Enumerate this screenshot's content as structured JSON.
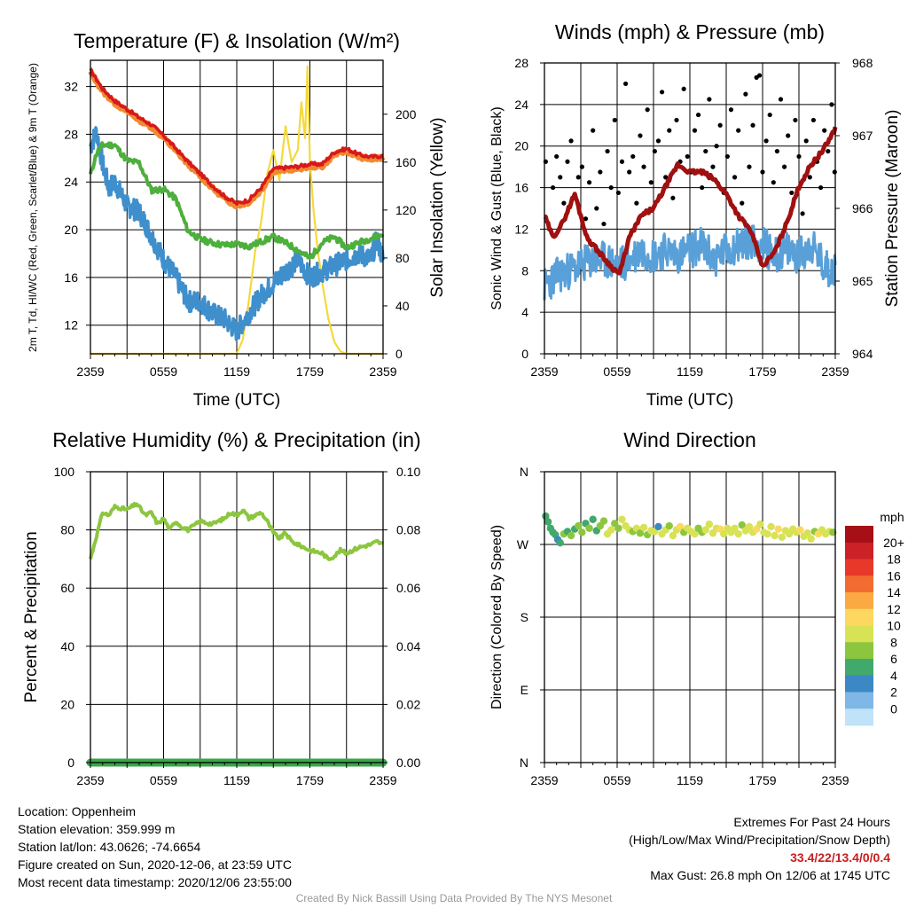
{
  "colors": {
    "temp_red": "#d7191c",
    "temp_orange": "#f08a30",
    "dewpoint_blue": "#3f8fcc",
    "hiwc_green": "#4daf3c",
    "insolation_yellow": "#f5d93a",
    "wind_blue": "#5aa0d8",
    "gust_black": "#000000",
    "pressure_maroon": "#a01010",
    "rh_green": "#8cc63f",
    "precip_green": "#3aa64a"
  },
  "panels": {
    "temp": {
      "title": "Temperature (F) & Insolation (W/m²)",
      "ylabel_left": "2m T, Td, HI/WC (Red, Green, Scarlet/Blue) & 9m T (Orange)",
      "ylabel_right": "Solar Insolation (Yellow)",
      "xlabel": "Time (UTC)"
    },
    "wind": {
      "title": "Winds (mph) & Pressure (mb)",
      "ylabel_left": "Sonic Wind & Gust (Blue, Black)",
      "ylabel_right": "Station Pressure (Maroon)",
      "xlabel": "Time (UTC)"
    },
    "rh": {
      "title": "Relative Humidity (%) & Precipitation (in)",
      "ylabel_left": "Percent & Precipitation"
    },
    "dir": {
      "title": "Wind Direction",
      "ylabel_left": "Direction (Colored By Speed)",
      "colorbar_unit": "mph"
    }
  },
  "chart_data": [
    {
      "id": "temperature",
      "type": "line",
      "x_ticks": [
        "2359",
        "0559",
        "1159",
        "1759",
        "2359"
      ],
      "x_hours": [
        0,
        6,
        12,
        18,
        24
      ],
      "ylim_left": [
        9.6,
        34.2
      ],
      "yticks_left": [
        12,
        16,
        20,
        24,
        28,
        32
      ],
      "ylim_right": [
        0,
        245
      ],
      "yticks_right": [
        0,
        40,
        80,
        120,
        160,
        200
      ],
      "series": [
        {
          "key": "t9m",
          "axis": "left",
          "color": "#f08a30",
          "x": [
            0,
            1,
            2,
            3,
            4,
            5,
            6,
            7,
            8,
            9,
            10,
            11,
            12,
            13,
            14,
            15,
            16,
            17,
            18,
            19,
            20,
            21,
            22,
            23,
            24
          ],
          "y": [
            33.2,
            31.6,
            30.6,
            29.9,
            29.2,
            28.6,
            27.7,
            26.6,
            25.5,
            24.5,
            23.5,
            22.6,
            22.0,
            22.3,
            23.3,
            24.9,
            25.0,
            25.1,
            25.3,
            25.3,
            26.3,
            26.6,
            26.1,
            25.9,
            26.0
          ]
        },
        {
          "key": "t2m",
          "axis": "left",
          "color": "#d7191c",
          "x": [
            0,
            1,
            2,
            3,
            4,
            5,
            6,
            7,
            8,
            9,
            10,
            11,
            12,
            13,
            14,
            15,
            16,
            17,
            18,
            19,
            20,
            21,
            22,
            23,
            24
          ],
          "y": [
            33.4,
            31.8,
            30.8,
            30.1,
            29.4,
            28.8,
            27.9,
            26.8,
            25.7,
            24.7,
            23.7,
            22.8,
            22.2,
            22.5,
            23.5,
            25.1,
            25.2,
            25.3,
            25.5,
            25.5,
            26.5,
            26.8,
            26.3,
            26.1,
            26.2
          ]
        },
        {
          "key": "hiwc",
          "axis": "left",
          "color": "#4daf3c",
          "x": [
            0,
            0.5,
            1,
            2,
            3,
            4,
            5,
            6,
            7,
            8,
            9,
            10,
            11,
            12,
            13,
            14,
            15,
            16,
            17,
            18,
            19,
            20,
            21,
            22,
            23,
            24
          ],
          "y": [
            24.6,
            26.4,
            27.1,
            27.1,
            25.8,
            25.6,
            23.3,
            23.4,
            22.6,
            19.9,
            19.2,
            18.9,
            18.7,
            18.8,
            18.6,
            19.0,
            19.4,
            18.9,
            18.3,
            17.6,
            18.9,
            19.4,
            18.5,
            18.9,
            19.3,
            19.6
          ]
        },
        {
          "key": "dewpoint",
          "axis": "left",
          "color": "#3f8fcc",
          "x": [
            0,
            0.5,
            1,
            1.5,
            2,
            3,
            4,
            5,
            6,
            7,
            8,
            9,
            10,
            11,
            12,
            13,
            14,
            15,
            16,
            17,
            18,
            19,
            20,
            21,
            22,
            23,
            23.5,
            24
          ],
          "y": [
            27.0,
            28.2,
            25.5,
            23.5,
            24.0,
            22.0,
            21.5,
            19.5,
            17.5,
            16.0,
            14.0,
            14.0,
            13.0,
            12.5,
            11.5,
            13.0,
            14.5,
            15.5,
            16.5,
            17.5,
            16.0,
            16.5,
            17.0,
            17.5,
            18.0,
            17.5,
            19.2,
            17.5
          ]
        },
        {
          "key": "insolation",
          "axis": "right",
          "color": "#f5d93a",
          "x": [
            0,
            12.0,
            12.5,
            13.0,
            13.5,
            14.0,
            14.5,
            15.0,
            15.5,
            16.0,
            16.5,
            17.0,
            17.3,
            17.6,
            17.8,
            18.0,
            18.3,
            18.6,
            19.0,
            19.5,
            20.0,
            20.5,
            21.0,
            24.0
          ],
          "y": [
            0,
            0,
            12,
            45,
            85,
            110,
            150,
            170,
            145,
            190,
            160,
            170,
            210,
            180,
            240,
            160,
            120,
            90,
            60,
            30,
            10,
            2,
            0,
            0
          ]
        }
      ]
    },
    {
      "id": "winds",
      "type": "line",
      "x_ticks": [
        "2359",
        "0559",
        "1159",
        "1759",
        "2359"
      ],
      "x_hours": [
        0,
        6,
        12,
        18,
        24
      ],
      "ylim_left": [
        0,
        28
      ],
      "yticks_left": [
        0,
        4,
        8,
        12,
        16,
        20,
        24,
        28
      ],
      "ylim_right": [
        964,
        968
      ],
      "yticks_right": [
        964,
        965,
        966,
        967,
        968
      ],
      "series": [
        {
          "key": "wind",
          "axis": "left",
          "color": "#5aa0d8",
          "x": [
            0,
            1,
            2,
            3,
            4,
            5,
            6,
            7,
            8,
            9,
            10,
            11,
            12,
            13,
            14,
            15,
            16,
            17,
            18,
            19,
            20,
            21,
            22,
            23,
            24
          ],
          "y": [
            6.5,
            7.5,
            8.0,
            8.5,
            9.0,
            9.0,
            8.5,
            9.0,
            10.0,
            9.5,
            10.0,
            9.5,
            10.0,
            10.5,
            9.0,
            10.0,
            10.5,
            11.0,
            10.5,
            9.5,
            10.0,
            9.5,
            10.5,
            8.5,
            8.0
          ]
        },
        {
          "key": "pressure",
          "axis": "right",
          "color": "#a01010",
          "x": [
            0,
            0.7,
            1.5,
            2.5,
            3.5,
            4.5,
            5.5,
            6.2,
            7,
            8,
            9,
            10,
            11,
            12,
            13,
            14,
            15,
            16,
            17,
            18,
            19,
            20,
            21,
            22,
            23,
            24
          ],
          "y": [
            965.9,
            965.6,
            965.8,
            966.2,
            965.6,
            965.4,
            965.2,
            965.1,
            965.6,
            965.9,
            966.0,
            966.3,
            966.6,
            966.5,
            966.5,
            966.4,
            966.2,
            965.9,
            965.7,
            965.2,
            965.4,
            965.8,
            966.3,
            966.6,
            966.8,
            967.1
          ]
        }
      ],
      "gusts": {
        "key": "gust",
        "color": "#000000",
        "x": [
          0.1,
          0.4,
          0.7,
          1.0,
          1.3,
          1.6,
          1.9,
          2.2,
          2.5,
          2.8,
          3.1,
          3.4,
          3.7,
          4.0,
          4.3,
          4.6,
          4.9,
          5.2,
          5.5,
          5.8,
          6.1,
          6.4,
          6.7,
          7.0,
          7.3,
          7.6,
          7.9,
          8.2,
          8.5,
          8.8,
          9.1,
          9.4,
          9.7,
          10.0,
          10.3,
          10.6,
          10.9,
          11.2,
          11.5,
          11.8,
          12.1,
          12.4,
          12.7,
          13.0,
          13.3,
          13.6,
          13.9,
          14.2,
          14.5,
          14.8,
          15.1,
          15.4,
          15.7,
          16.0,
          16.3,
          16.6,
          16.9,
          17.2,
          17.5,
          17.75,
          18.0,
          18.3,
          18.6,
          18.9,
          19.2,
          19.5,
          19.8,
          20.1,
          20.4,
          20.7,
          21.0,
          21.3,
          21.6,
          21.9,
          22.2,
          22.5,
          22.8,
          23.1,
          23.4,
          23.7,
          23.95
        ],
        "y": [
          18.5,
          12.0,
          16.0,
          19.0,
          17.0,
          14.5,
          18.5,
          20.5,
          15.0,
          17.0,
          18.0,
          13.0,
          16.5,
          21.5,
          14.0,
          17.5,
          12.5,
          19.5,
          16.0,
          22.5,
          15.5,
          18.5,
          26.0,
          17.5,
          19.0,
          14.5,
          21.0,
          18.0,
          23.5,
          16.5,
          19.5,
          20.5,
          25.2,
          17.0,
          21.5,
          15.0,
          22.5,
          18.5,
          25.5,
          19.0,
          17.5,
          21.5,
          23.0,
          16.0,
          19.5,
          24.5,
          18.0,
          20.0,
          22.0,
          15.5,
          19.0,
          23.5,
          17.0,
          21.5,
          14.5,
          25.0,
          18.0,
          22.0,
          26.6,
          26.8,
          17.5,
          20.5,
          23.0,
          16.5,
          19.5,
          24.5,
          18.0,
          21.0,
          15.5,
          22.5,
          19.0,
          13.5,
          20.5,
          17.0,
          22.5,
          18.5,
          16.0,
          21.5,
          19.5,
          24.0,
          17.5
        ]
      }
    },
    {
      "id": "humidity",
      "type": "line",
      "x_ticks": [
        "2359",
        "0559",
        "1159",
        "1759",
        "2359"
      ],
      "x_hours": [
        0,
        6,
        12,
        18,
        24
      ],
      "ylim_left": [
        0,
        100
      ],
      "yticks_left": [
        0,
        20,
        40,
        60,
        80,
        100
      ],
      "ylim_right": [
        0,
        0.1
      ],
      "yticks_right": [
        "0.00",
        "0.02",
        "0.04",
        "0.06",
        "0.08",
        "0.10"
      ],
      "series": [
        {
          "key": "rh",
          "axis": "left",
          "color": "#8cc63f",
          "x": [
            0,
            0.5,
            1,
            1.5,
            2,
            3,
            3.8,
            4.5,
            5,
            5.5,
            6,
            6.5,
            7,
            7.5,
            8,
            9,
            10,
            11,
            11.5,
            12,
            12.5,
            13,
            13.5,
            14,
            14.5,
            15,
            15.5,
            16,
            16.5,
            17,
            18,
            19,
            19.5,
            20,
            20.5,
            21,
            22,
            23,
            23.5,
            24
          ],
          "y": [
            70,
            78,
            86,
            85,
            88,
            87,
            89,
            85,
            86,
            82,
            84,
            80,
            83,
            81,
            80,
            83,
            82,
            84,
            86,
            85,
            87,
            84,
            85,
            86,
            83,
            79,
            77,
            79,
            76,
            75,
            73,
            72,
            70,
            71,
            73,
            72,
            74,
            75,
            76,
            75
          ]
        },
        {
          "key": "precip",
          "axis": "right",
          "color": "#3aa64a",
          "x": [
            0,
            24
          ],
          "y": [
            0,
            0
          ]
        }
      ]
    },
    {
      "id": "wind_direction",
      "type": "scatter",
      "x_ticks": [
        "2359",
        "0559",
        "1159",
        "1759",
        "2359"
      ],
      "x_hours": [
        0,
        6,
        12,
        18,
        24
      ],
      "yticks": [
        "N",
        "E",
        "S",
        "W",
        "N"
      ],
      "yvals": [
        0,
        90,
        180,
        270,
        360
      ],
      "ylim": [
        0,
        360
      ],
      "points": {
        "x": [
          0.1,
          0.3,
          0.5,
          0.7,
          0.9,
          1.1,
          1.3,
          1.6,
          1.9,
          2.2,
          2.5,
          2.8,
          3.1,
          3.4,
          3.7,
          4.0,
          4.3,
          4.6,
          4.9,
          5.2,
          5.5,
          5.8,
          6.1,
          6.4,
          6.7,
          7.0,
          7.3,
          7.6,
          7.9,
          8.2,
          8.5,
          8.8,
          9.1,
          9.4,
          9.7,
          10.0,
          10.3,
          10.6,
          10.9,
          11.2,
          11.5,
          11.8,
          12.1,
          12.4,
          12.7,
          13.0,
          13.3,
          13.6,
          13.9,
          14.2,
          14.5,
          14.8,
          15.1,
          15.4,
          15.7,
          16.0,
          16.3,
          16.6,
          16.9,
          17.2,
          17.5,
          17.8,
          18.1,
          18.4,
          18.7,
          19.0,
          19.3,
          19.6,
          19.9,
          20.2,
          20.5,
          20.8,
          21.1,
          21.4,
          21.7,
          22.0,
          22.3,
          22.6,
          22.9,
          23.2,
          23.5,
          23.8
        ],
        "dir": [
          305,
          298,
          290,
          285,
          282,
          276,
          272,
          283,
          286,
          281,
          289,
          293,
          285,
          296,
          290,
          301,
          287,
          293,
          299,
          283,
          288,
          296,
          290,
          301,
          293,
          288,
          286,
          290,
          284,
          291,
          282,
          287,
          286,
          292,
          283,
          288,
          293,
          281,
          288,
          292,
          285,
          290,
          286,
          283,
          290,
          285,
          288,
          295,
          284,
          290,
          289,
          283,
          290,
          285,
          290,
          283,
          294,
          287,
          292,
          285,
          289,
          295,
          285,
          283,
          292,
          281,
          289,
          279,
          287,
          283,
          289,
          285,
          288,
          280,
          284,
          277,
          286,
          283,
          288,
          283,
          286,
          285
        ],
        "speed": [
          7,
          6,
          6,
          6,
          7,
          5,
          6,
          9,
          7,
          8,
          7,
          8,
          8,
          7,
          9,
          7,
          6,
          8,
          9,
          10,
          10,
          9,
          8,
          10,
          11,
          10,
          9,
          10,
          9,
          10,
          8,
          10,
          11,
          4,
          10,
          11,
          9,
          10,
          10,
          12,
          9,
          10,
          11,
          10,
          9,
          9,
          10,
          10,
          10,
          10,
          12,
          10,
          10,
          10,
          11,
          10,
          9,
          10,
          10,
          10,
          12,
          10,
          10,
          11,
          10,
          10,
          13,
          10,
          10,
          11,
          10,
          10,
          12,
          10,
          10,
          10,
          9,
          12,
          10,
          10,
          11,
          8
        ]
      }
    }
  ],
  "colorbar": {
    "labels": [
      "20+",
      "18",
      "16",
      "14",
      "12",
      "10",
      "8",
      "6",
      "4",
      "2",
      "0"
    ],
    "colors": [
      "#a50f15",
      "#cb2127",
      "#e8382a",
      "#f36c2f",
      "#fba942",
      "#fdd860",
      "#d8e255",
      "#8cc63f",
      "#41a96b",
      "#3b88c4",
      "#7fb8e6",
      "#bfe3f8"
    ]
  },
  "info_left": [
    "Location: Oppenheim",
    "Station elevation: 359.999 m",
    "Station lat/lon: 43.0626; -74.6654",
    "Figure created on Sun, 2020-12-06, at 23:59 UTC",
    "Most recent data timestamp: 2020/12/06 23:55:00"
  ],
  "extremes": {
    "title": "Extremes For Past 24 Hours",
    "subtitle": "(High/Low/Max Wind/Precipitation/Snow Depth)",
    "values": "33.4/22/13.4/0/0.4",
    "max_gust": "Max Gust: 26.8 mph On 12/06 at 1745 UTC"
  },
  "credit": "Created By Nick Bassill Using Data Provided By The NYS Mesonet"
}
